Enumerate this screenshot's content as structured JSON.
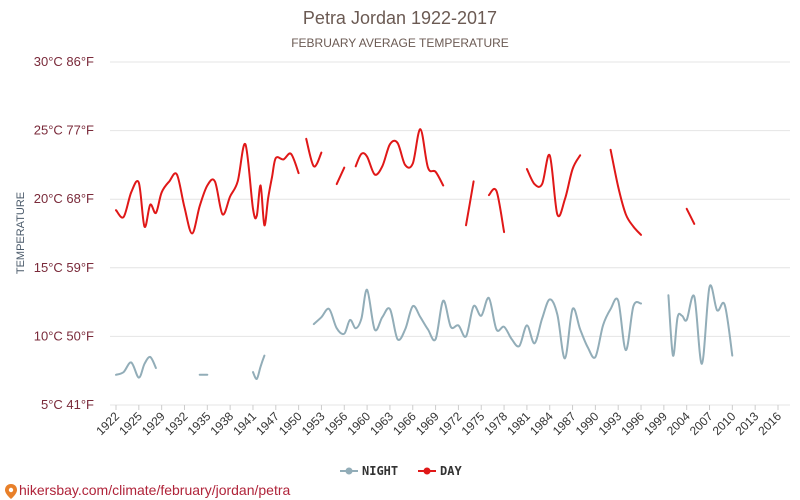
{
  "chart_data": {
    "type": "line",
    "title": "Petra Jordan 1922-2017",
    "subtitle": "FEBRUARY AVERAGE TEMPERATURE",
    "ylabel": "TEMPERATURE",
    "xlabel": "",
    "ylim": [
      5,
      30
    ],
    "grid": true,
    "legend_position": "bottom-center",
    "y_ticks": [
      {
        "value": 30,
        "label": "30°C 86°F"
      },
      {
        "value": 25,
        "label": "25°C 77°F"
      },
      {
        "value": 20,
        "label": "20°C 68°F"
      },
      {
        "value": 15,
        "label": "15°C 59°F"
      },
      {
        "value": 10,
        "label": "10°C 50°F"
      },
      {
        "value": 5,
        "label": "5°C 41°F"
      }
    ],
    "x_ticks": [
      "1922",
      "1925",
      "1929",
      "1932",
      "1935",
      "1938",
      "1941",
      "1947",
      "1950",
      "1953",
      "1956",
      "1960",
      "1963",
      "1966",
      "1969",
      "1972",
      "1975",
      "1978",
      "1981",
      "1984",
      "1987",
      "1990",
      "1993",
      "1996",
      "1999",
      "2004",
      "2007",
      "2010",
      "2013",
      "2016"
    ],
    "series": [
      {
        "name": "NIGHT",
        "color": "#92adb8",
        "segments": [
          [
            [
              1922,
              7.2
            ],
            [
              1923,
              7.4
            ],
            [
              1924,
              8.1
            ],
            [
              1925,
              7.0
            ],
            [
              1926,
              8.0
            ],
            [
              1927,
              8.5
            ],
            [
              1928,
              7.7
            ]
          ],
          [
            [
              1934,
              7.2
            ],
            [
              1935,
              7.2
            ]
          ],
          [
            [
              1941,
              7.4
            ],
            [
              1942,
              6.9
            ],
            [
              1943,
              7.8
            ],
            [
              1944,
              8.6
            ]
          ],
          [
            [
              1952,
              10.9
            ],
            [
              1953,
              11.4
            ],
            [
              1954,
              12.0
            ],
            [
              1955,
              10.6
            ],
            [
              1956,
              10.2
            ],
            [
              1957,
              11.2
            ],
            [
              1958,
              10.6
            ],
            [
              1959,
              11.3
            ],
            [
              1960,
              13.4
            ],
            [
              1961,
              10.5
            ],
            [
              1962,
              11.4
            ],
            [
              1963,
              12.0
            ],
            [
              1964,
              9.8
            ],
            [
              1965,
              10.5
            ],
            [
              1966,
              12.2
            ],
            [
              1967,
              11.4
            ],
            [
              1968,
              10.5
            ],
            [
              1969,
              9.8
            ],
            [
              1970,
              12.6
            ],
            [
              1971,
              10.7
            ],
            [
              1972,
              10.8
            ],
            [
              1973,
              10.0
            ],
            [
              1974,
              12.2
            ],
            [
              1975,
              11.5
            ],
            [
              1976,
              12.8
            ],
            [
              1977,
              10.5
            ],
            [
              1978,
              10.7
            ],
            [
              1979,
              9.8
            ],
            [
              1980,
              9.3
            ],
            [
              1981,
              10.8
            ],
            [
              1982,
              9.5
            ],
            [
              1983,
              11.3
            ],
            [
              1984,
              12.7
            ],
            [
              1985,
              11.6
            ],
            [
              1986,
              8.4
            ],
            [
              1987,
              12.0
            ],
            [
              1988,
              10.5
            ],
            [
              1989,
              9.2
            ],
            [
              1990,
              8.5
            ],
            [
              1991,
              10.8
            ],
            [
              1992,
              12.0
            ],
            [
              1993,
              12.6
            ],
            [
              1994,
              9.0
            ],
            [
              1995,
              12.2
            ],
            [
              1996,
              12.4
            ]
          ],
          [
            [
              2000,
              13.0
            ],
            [
              2001,
              8.6
            ],
            [
              2002,
              11.4
            ],
            [
              2003,
              11.5
            ],
            [
              2004,
              11.2
            ],
            [
              2005,
              12.9
            ],
            [
              2006,
              8.0
            ],
            [
              2007,
              13.6
            ],
            [
              2008,
              11.9
            ],
            [
              2009,
              12.3
            ],
            [
              2010,
              8.6
            ]
          ]
        ]
      },
      {
        "name": "DAY",
        "color": "#e01818",
        "segments": [
          [
            [
              1922,
              19.2
            ],
            [
              1923,
              18.7
            ],
            [
              1924,
              20.5
            ],
            [
              1925,
              21.2
            ],
            [
              1926,
              18.0
            ],
            [
              1927,
              19.6
            ],
            [
              1928,
              19.0
            ],
            [
              1929,
              20.5
            ],
            [
              1930,
              21.3
            ],
            [
              1931,
              21.8
            ],
            [
              1932,
              19.4
            ],
            [
              1933,
              17.5
            ],
            [
              1934,
              19.5
            ],
            [
              1935,
              21.0
            ],
            [
              1936,
              21.3
            ],
            [
              1937,
              18.9
            ],
            [
              1938,
              20.2
            ],
            [
              1939,
              21.3
            ],
            [
              1940,
              24.0
            ],
            [
              1941,
              19.3
            ],
            [
              1942,
              18.8
            ],
            [
              1943,
              21.0
            ],
            [
              1944,
              18.1
            ],
            [
              1945,
              20.1
            ],
            [
              1946,
              21.6
            ],
            [
              1947,
              23.0
            ],
            [
              1948,
              22.9
            ],
            [
              1949,
              23.3
            ],
            [
              1950,
              21.9
            ]
          ],
          [
            [
              1951,
              24.4
            ],
            [
              1952,
              22.4
            ],
            [
              1953,
              23.4
            ]
          ],
          [
            [
              1955,
              21.1
            ],
            [
              1956,
              22.3
            ]
          ],
          [
            [
              1958,
              22.4
            ],
            [
              1959,
              23.3
            ],
            [
              1960,
              23.1
            ],
            [
              1961,
              21.8
            ],
            [
              1962,
              22.4
            ],
            [
              1963,
              24.0
            ],
            [
              1964,
              24.1
            ],
            [
              1965,
              22.5
            ],
            [
              1966,
              22.6
            ],
            [
              1967,
              25.1
            ],
            [
              1968,
              22.3
            ],
            [
              1969,
              22.0
            ],
            [
              1970,
              21.0
            ]
          ],
          [
            [
              1973,
              18.1
            ],
            [
              1974,
              21.3
            ]
          ],
          [
            [
              1976,
              20.3
            ],
            [
              1977,
              20.6
            ],
            [
              1978,
              17.6
            ]
          ],
          [
            [
              1981,
              22.2
            ],
            [
              1982,
              21.1
            ],
            [
              1983,
              21.1
            ],
            [
              1984,
              23.2
            ],
            [
              1985,
              18.9
            ],
            [
              1986,
              20.0
            ],
            [
              1987,
              22.2
            ],
            [
              1988,
              23.2
            ]
          ],
          [
            [
              1992,
              23.6
            ],
            [
              1993,
              20.9
            ],
            [
              1994,
              18.9
            ],
            [
              1995,
              18.0
            ],
            [
              1996,
              17.4
            ]
          ],
          [
            [
              2004,
              19.3
            ],
            [
              2005,
              18.2
            ]
          ]
        ]
      }
    ]
  },
  "legend": {
    "night_label": "NIGHT",
    "day_label": "DAY"
  },
  "footer": {
    "text": "hikersbay.com/climate/february/jordan/petra",
    "icon": "map-pin-icon"
  }
}
